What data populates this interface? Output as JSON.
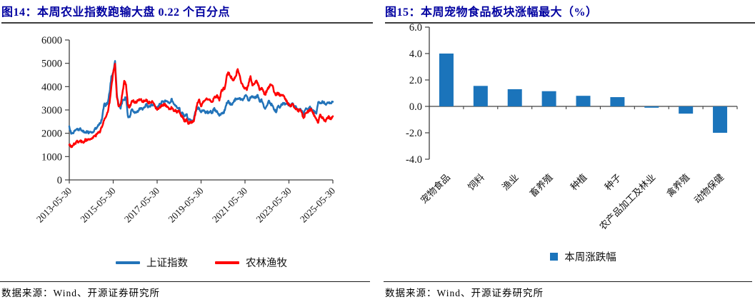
{
  "figure14": {
    "title": "图14：本周农业指数跑输大盘 0.22 个百分点",
    "source": "数据来源：Wind、开源证券研究所",
    "legend": [
      {
        "label": "上证指数",
        "color": "#2273B9"
      },
      {
        "label": "农林渔牧",
        "color": "#FF0000"
      }
    ]
  },
  "figure15": {
    "title": "图15：本周宠物食品板块涨幅最大（%）",
    "source": "数据来源：Wind、开源证券研究所",
    "legend": [
      {
        "label": "本周涨跌幅",
        "color": "#1B74BB"
      }
    ]
  },
  "chart_data": [
    {
      "type": "line",
      "title": "本周农业指数跑输大盘 0.22 个百分点",
      "ylim": [
        0,
        6000
      ],
      "yticks": [
        0,
        1000,
        2000,
        3000,
        4000,
        5000,
        6000
      ],
      "xtick_labels": [
        "2013-05-30",
        "2015-05-30",
        "2017-05-30",
        "2019-05-30",
        "2021-05-30",
        "2023-05-30",
        "2025-05-30"
      ],
      "xtick_index": [
        0,
        24,
        48,
        72,
        96,
        120,
        144
      ],
      "grid": false,
      "legend_position": "bottom",
      "series": [
        {
          "name": "上证指数",
          "color": "#2273B9",
          "values": [
            2300,
            1980,
            1995,
            2100,
            2175,
            2140,
            2220,
            2115,
            2035,
            2055,
            2035,
            2025,
            2040,
            2050,
            2200,
            2215,
            2365,
            2420,
            2680,
            3235,
            3210,
            3310,
            3750,
            4440,
            4610,
            5100,
            3665,
            3205,
            3055,
            3385,
            3445,
            3540,
            2740,
            2690,
            3005,
            2940,
            2915,
            2930,
            2980,
            3085,
            3005,
            3100,
            3250,
            3105,
            3160,
            3240,
            3220,
            3155,
            3115,
            3190,
            3275,
            3360,
            3350,
            3390,
            3315,
            3305,
            3480,
            3260,
            3170,
            3080,
            3095,
            2845,
            2875,
            2725,
            2820,
            2605,
            2590,
            2495,
            2585,
            2940,
            3090,
            3080,
            2900,
            2980,
            2935,
            2885,
            2905,
            2930,
            2870,
            3050,
            2975,
            2880,
            2750,
            2860,
            2850,
            2985,
            3310,
            3395,
            3220,
            3225,
            3390,
            3475,
            3485,
            3510,
            3440,
            3445,
            3615,
            3590,
            3395,
            3545,
            3570,
            3545,
            3565,
            3640,
            3360,
            3460,
            3250,
            3045,
            3185,
            3400,
            3255,
            3200,
            3025,
            2895,
            3150,
            3090,
            3255,
            3280,
            3275,
            3325,
            3205,
            3200,
            3290,
            3120,
            3110,
            3020,
            3030,
            2975,
            2790,
            3015,
            3040,
            3105,
            3085,
            2965,
            2940,
            2840,
            3335,
            3280,
            3325,
            3350,
            3250,
            3320,
            3335,
            3280,
            3350
          ]
        },
        {
          "name": "农林渔牧",
          "color": "#FF0000",
          "values": [
            1500,
            1405,
            1480,
            1560,
            1645,
            1600,
            1690,
            1620,
            1650,
            1720,
            1700,
            1730,
            1755,
            1800,
            1880,
            1950,
            2030,
            2105,
            2300,
            2550,
            2700,
            2900,
            3300,
            4000,
            4600,
            4980,
            3550,
            3150,
            3250,
            3700,
            4250,
            4100,
            3200,
            3120,
            3350,
            3420,
            3300,
            3360,
            3400,
            3450,
            3340,
            3400,
            3450,
            3300,
            3310,
            3350,
            3290,
            3150,
            3000,
            3090,
            3150,
            3210,
            3250,
            3200,
            3100,
            3050,
            3100,
            2950,
            3010,
            2900,
            2950,
            2740,
            2700,
            2500,
            2610,
            2400,
            2500,
            2450,
            2510,
            2900,
            3310,
            3450,
            3150,
            3340,
            3400,
            3500,
            3450,
            3400,
            3340,
            3500,
            3560,
            3600,
            3400,
            3800,
            3890,
            3950,
            4450,
            4600,
            4450,
            4340,
            4300,
            4450,
            4750,
            4500,
            4140,
            4000,
            3950,
            3850,
            4150,
            4450,
            4050,
            4100,
            4250,
            4150,
            3850,
            3950,
            3800,
            3650,
            3850,
            4000,
            4100,
            4050,
            3750,
            3650,
            3740,
            3600,
            3650,
            3600,
            3450,
            3350,
            3200,
            3150,
            3250,
            3100,
            3050,
            2950,
            3000,
            2900,
            2650,
            2850,
            2900,
            2950,
            3050,
            2900,
            2750,
            2600,
            2450,
            2800,
            2700,
            2600,
            2500,
            2650,
            2700,
            2600,
            2730
          ]
        }
      ]
    },
    {
      "type": "bar",
      "title": "本周宠物食品板块涨幅最大（%）",
      "categories": [
        "宠物食品",
        "饲料",
        "渔业",
        "畜养殖",
        "种植",
        "种子",
        "农产品加工及林业",
        "禽养殖",
        "动物保健"
      ],
      "values": [
        4.0,
        1.55,
        1.3,
        1.15,
        0.8,
        0.7,
        -0.1,
        -0.55,
        -2.0
      ],
      "ylim": [
        -4.0,
        6.0
      ],
      "yticks": [
        6.0,
        4.0,
        2.0,
        0.0,
        -2.0,
        -4.0
      ],
      "bar_color": "#1B74BB",
      "grid": false,
      "legend": "本周涨跌幅",
      "legend_position": "bottom"
    }
  ]
}
